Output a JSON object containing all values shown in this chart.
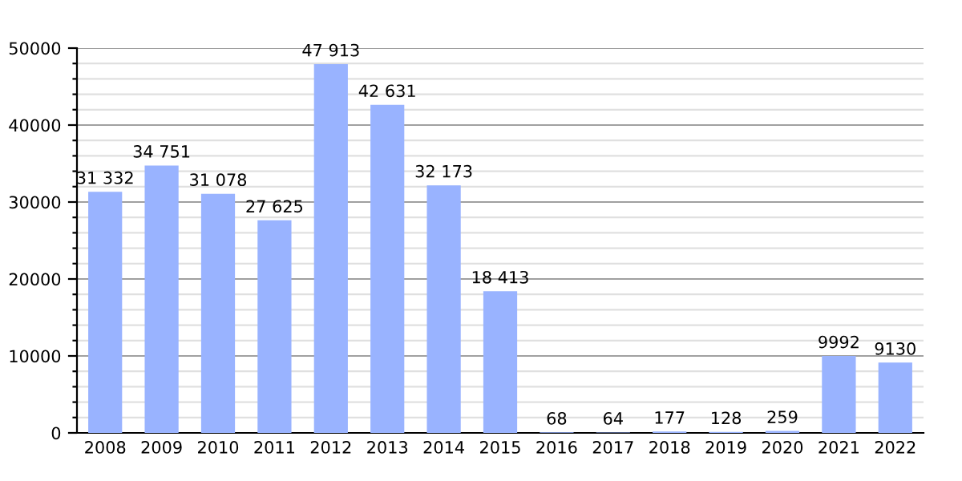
{
  "chart_data": {
    "type": "bar",
    "categories": [
      "2008",
      "2009",
      "2010",
      "2011",
      "2012",
      "2013",
      "2014",
      "2015",
      "2016",
      "2017",
      "2018",
      "2019",
      "2020",
      "2021",
      "2022"
    ],
    "values": [
      31332,
      34751,
      31078,
      27625,
      47913,
      42631,
      32173,
      18413,
      68,
      64,
      177,
      128,
      259,
      9992,
      9130
    ],
    "value_labels": [
      "31 332",
      "34 751",
      "31 078",
      "27 625",
      "47 913",
      "42 631",
      "32 173",
      "18 413",
      "68",
      "64",
      "177",
      "128",
      "259",
      "9992",
      "9130"
    ],
    "color": "#99b3ff",
    "ylim": [
      0,
      50000
    ],
    "yticks": [
      0,
      {
        "value": 2000,
        "label": null
      },
      {
        "value": 4000,
        "label": null
      },
      {
        "value": 6000,
        "label": null
      },
      {
        "value": 8000,
        "label": null
      },
      10000,
      {
        "value": 12000,
        "label": null
      },
      {
        "value": 14000,
        "label": null
      },
      {
        "value": 16000,
        "label": null
      },
      {
        "value": 18000,
        "label": null
      },
      20000,
      {
        "value": 22000,
        "label": null
      },
      {
        "value": 24000,
        "label": null
      },
      {
        "value": 26000,
        "label": null
      },
      {
        "value": 28000,
        "label": null
      },
      30000,
      {
        "value": 32000,
        "label": null
      },
      {
        "value": 34000,
        "label": null
      },
      {
        "value": 36000,
        "label": null
      },
      {
        "value": 38000,
        "label": null
      },
      40000,
      {
        "value": 42000,
        "label": null
      },
      {
        "value": 44000,
        "label": null
      },
      {
        "value": 46000,
        "label": null
      },
      {
        "value": 48000,
        "label": null
      },
      50000
    ],
    "grid": "y"
  }
}
